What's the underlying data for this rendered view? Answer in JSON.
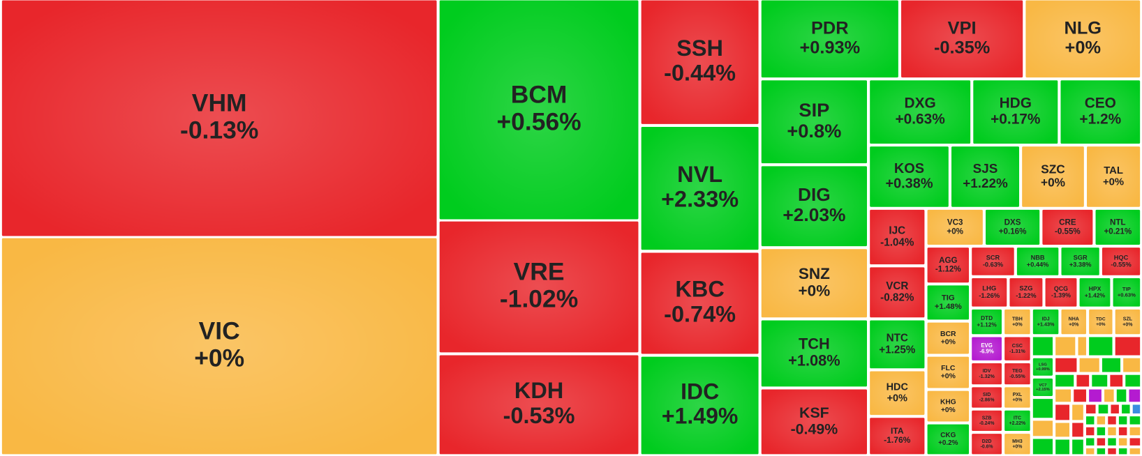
{
  "tiles": [
    {
      "ticker": "VHM",
      "change": "-0.13%",
      "color": "#e8262b"
    },
    {
      "ticker": "VIC",
      "change": "+0%",
      "color": "#f9b844"
    },
    {
      "ticker": "BCM",
      "change": "+0.56%",
      "color": "#00cc1e"
    },
    {
      "ticker": "VRE",
      "change": "-1.02%",
      "color": "#e8262b"
    },
    {
      "ticker": "KDH",
      "change": "-0.53%",
      "color": "#e8262b"
    },
    {
      "ticker": "SSH",
      "change": "-0.44%",
      "color": "#e8262b"
    },
    {
      "ticker": "NVL",
      "change": "+2.33%",
      "color": "#00cc1e"
    },
    {
      "ticker": "KBC",
      "change": "-0.74%",
      "color": "#e8262b"
    },
    {
      "ticker": "IDC",
      "change": "+1.49%",
      "color": "#00cc1e"
    },
    {
      "ticker": "PDR",
      "change": "+0.93%",
      "color": "#00cc1e"
    },
    {
      "ticker": "VPI",
      "change": "-0.35%",
      "color": "#e8262b"
    },
    {
      "ticker": "NLG",
      "change": "+0%",
      "color": "#f9b844"
    },
    {
      "ticker": "SIP",
      "change": "+0.8%",
      "color": "#00cc1e"
    },
    {
      "ticker": "DIG",
      "change": "+2.03%",
      "color": "#00cc1e"
    },
    {
      "ticker": "SNZ",
      "change": "+0%",
      "color": "#f9b844"
    },
    {
      "ticker": "TCH",
      "change": "+1.08%",
      "color": "#00cc1e"
    },
    {
      "ticker": "KSF",
      "change": "-0.49%",
      "color": "#e8262b"
    },
    {
      "ticker": "DXG",
      "change": "+0.63%",
      "color": "#00cc1e"
    },
    {
      "ticker": "HDG",
      "change": "+0.17%",
      "color": "#00cc1e"
    },
    {
      "ticker": "CEO",
      "change": "+1.2%",
      "color": "#00cc1e"
    },
    {
      "ticker": "KOS",
      "change": "+0.38%",
      "color": "#00cc1e"
    },
    {
      "ticker": "SJS",
      "change": "+1.22%",
      "color": "#00cc1e"
    },
    {
      "ticker": "SZC",
      "change": "+0%",
      "color": "#f9b844"
    },
    {
      "ticker": "TAL",
      "change": "+0%",
      "color": "#f9b844"
    },
    {
      "ticker": "IJC",
      "change": "-1.04%",
      "color": "#e8262b"
    },
    {
      "ticker": "VCR",
      "change": "-0.82%",
      "color": "#e8262b"
    },
    {
      "ticker": "NTC",
      "change": "+1.25%",
      "color": "#00cc1e"
    },
    {
      "ticker": "HDC",
      "change": "+0%",
      "color": "#f9b844"
    },
    {
      "ticker": "ITA",
      "change": "-1.76%",
      "color": "#e8262b"
    },
    {
      "ticker": "VC3",
      "change": "+0%",
      "color": "#f9b844"
    },
    {
      "ticker": "DXS",
      "change": "+0.16%",
      "color": "#00cc1e"
    },
    {
      "ticker": "CRE",
      "change": "-0.55%",
      "color": "#e8262b"
    },
    {
      "ticker": "NTL",
      "change": "+0.21%",
      "color": "#00cc1e"
    },
    {
      "ticker": "AGG",
      "change": "-1.12%",
      "color": "#e8262b"
    },
    {
      "ticker": "TIG",
      "change": "+1.48%",
      "color": "#00cc1e"
    },
    {
      "ticker": "BCR",
      "change": "+0%",
      "color": "#f9b844"
    },
    {
      "ticker": "FLC",
      "change": "+0%",
      "color": "#f9b844"
    },
    {
      "ticker": "KHG",
      "change": "+0%",
      "color": "#f9b844"
    },
    {
      "ticker": "CKG",
      "change": "+0.2%",
      "color": "#00cc1e"
    },
    {
      "ticker": "SCR",
      "change": "-0.63%",
      "color": "#e8262b"
    },
    {
      "ticker": "NBB",
      "change": "+0.44%",
      "color": "#00cc1e"
    },
    {
      "ticker": "SGR",
      "change": "+3.38%",
      "color": "#00cc1e"
    },
    {
      "ticker": "HQC",
      "change": "-0.55%",
      "color": "#e8262b"
    },
    {
      "ticker": "LHG",
      "change": "-1.26%",
      "color": "#e8262b"
    },
    {
      "ticker": "SZG",
      "change": "-1.22%",
      "color": "#e8262b"
    },
    {
      "ticker": "QCG",
      "change": "-1.39%",
      "color": "#e8262b"
    },
    {
      "ticker": "HPX",
      "change": "+1.42%",
      "color": "#00cc1e"
    },
    {
      "ticker": "TIP",
      "change": "+0.63%",
      "color": "#00cc1e"
    },
    {
      "ticker": "DTD",
      "change": "+1.12%",
      "color": "#00cc1e"
    },
    {
      "ticker": "TBH",
      "change": "+0%",
      "color": "#f9b844"
    },
    {
      "ticker": "IDJ",
      "change": "+1.43%",
      "color": "#00cc1e"
    },
    {
      "ticker": "NHA",
      "change": "+0%",
      "color": "#f9b844"
    },
    {
      "ticker": "TDC",
      "change": "+0%",
      "color": "#f9b844"
    },
    {
      "ticker": "SZL",
      "change": "+0%",
      "color": "#f9b844"
    },
    {
      "ticker": "EVG",
      "change": "-6.9%",
      "color": "#b41bd0"
    },
    {
      "ticker": "CSC",
      "change": "-1.31%",
      "color": "#e8262b"
    },
    {
      "ticker": "IDV",
      "change": "-1.32%",
      "color": "#e8262b"
    },
    {
      "ticker": "SID",
      "change": "-2.86%",
      "color": "#e8262b"
    },
    {
      "ticker": "SZB",
      "change": "-0.24%",
      "color": "#e8262b"
    },
    {
      "ticker": "D2D",
      "change": "-0.6%",
      "color": "#e8262b"
    },
    {
      "ticker": "TEG",
      "change": "-0.55%",
      "color": "#e8262b"
    },
    {
      "ticker": "PXL",
      "change": "+0%",
      "color": "#f9b844"
    },
    {
      "ticker": "ITC",
      "change": "+2.22%",
      "color": "#00cc1e"
    },
    {
      "ticker": "MH3",
      "change": "+0%",
      "color": "#f9b844"
    },
    {
      "ticker": "LSG",
      "change": "+0.99%",
      "color": "#00cc1e"
    },
    {
      "ticker": "VC7",
      "change": "+2.15%",
      "color": "#00cc1e"
    }
  ]
}
